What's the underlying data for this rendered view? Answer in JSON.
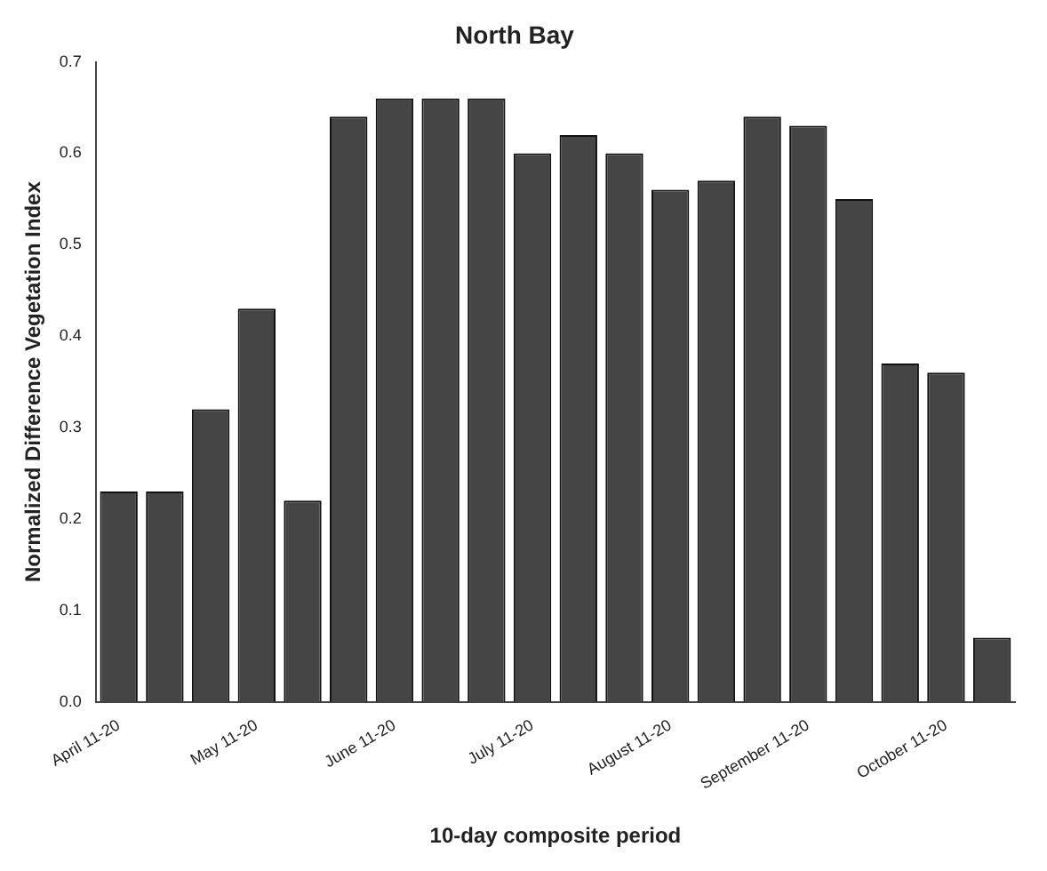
{
  "chart_data": {
    "type": "bar",
    "title": "North Bay",
    "xlabel": "10-day composite period",
    "ylabel": "Normalized Difference Vegetation Index",
    "categories": [
      "April 11-20",
      null,
      null,
      "May 11-20",
      null,
      null,
      "June 11-20",
      null,
      null,
      "July 11-20",
      null,
      null,
      "August 11-20",
      null,
      null,
      "September 11-20",
      null,
      null,
      "October 11-20",
      null
    ],
    "values": [
      0.23,
      0.23,
      0.32,
      0.43,
      0.22,
      0.64,
      0.66,
      0.66,
      0.66,
      0.6,
      0.62,
      0.6,
      0.56,
      0.57,
      0.64,
      0.63,
      0.55,
      0.37,
      0.36,
      0.07
    ],
    "color": "#454545",
    "ylim": [
      0,
      0.7
    ],
    "yticks": [
      "0.0",
      0.1,
      0.2,
      0.3,
      0.4,
      0.5,
      0.6,
      0.7
    ],
    "grid": false,
    "legend": false
  }
}
